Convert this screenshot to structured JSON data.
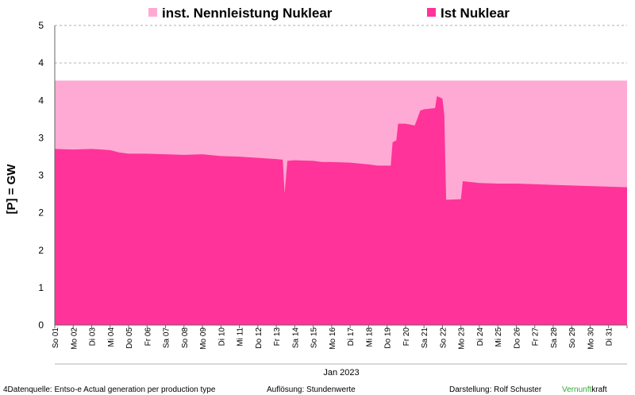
{
  "chart_data": {
    "type": "area",
    "xlabel": "Jan 2023",
    "ylabel": "[P] = GW",
    "ylim": [
      0,
      5
    ],
    "y_ticks": [
      "0",
      "1",
      "2",
      "2",
      "3",
      "3",
      "4",
      "4",
      "5"
    ],
    "grid": "horizontal dashed",
    "legend_position": "top",
    "categories": [
      "So 01",
      "Mo 02",
      "Di 03",
      "Mi 04",
      "Do 05",
      "Fr 06",
      "Sa 07",
      "So 08",
      "Mo 09",
      "Di 10",
      "Mi 11",
      "Do 12",
      "Fr 13",
      "Sa 14",
      "So 15",
      "Mo 16",
      "Di 17",
      "Mi 18",
      "Do 19",
      "Fr 20",
      "Sa 21",
      "So 22",
      "Mo 23",
      "Di 24",
      "Mi 25",
      "Do 26",
      "Fr 27",
      "Sa 28",
      "So 29",
      "Mo 30",
      "Di 31"
    ],
    "series": [
      {
        "name": "inst. Nennleistung Nuklear",
        "color": "#ffaad4",
        "points": [
          [
            0,
            4.08
          ],
          [
            31,
            4.08
          ]
        ]
      },
      {
        "name": "Ist Nuklear",
        "color": "#ff3399",
        "points": [
          [
            0,
            2.94
          ],
          [
            1,
            2.93
          ],
          [
            2,
            2.94
          ],
          [
            3,
            2.92
          ],
          [
            3.5,
            2.88
          ],
          [
            4,
            2.86
          ],
          [
            5,
            2.86
          ],
          [
            6,
            2.85
          ],
          [
            7,
            2.84
          ],
          [
            8,
            2.85
          ],
          [
            9,
            2.82
          ],
          [
            10,
            2.81
          ],
          [
            11,
            2.79
          ],
          [
            12,
            2.77
          ],
          [
            12.35,
            2.76
          ],
          [
            12.45,
            2.2
          ],
          [
            12.6,
            2.74
          ],
          [
            13,
            2.75
          ],
          [
            14,
            2.74
          ],
          [
            14.5,
            2.72
          ],
          [
            15,
            2.72
          ],
          [
            16,
            2.71
          ],
          [
            17,
            2.68
          ],
          [
            17.5,
            2.66
          ],
          [
            18.2,
            2.66
          ],
          [
            18.3,
            3.05
          ],
          [
            18.5,
            3.08
          ],
          [
            18.6,
            3.36
          ],
          [
            19,
            3.36
          ],
          [
            19.5,
            3.33
          ],
          [
            19.8,
            3.58
          ],
          [
            20,
            3.6
          ],
          [
            20.6,
            3.62
          ],
          [
            20.7,
            3.82
          ],
          [
            21,
            3.78
          ],
          [
            21.1,
            3.5
          ],
          [
            21.2,
            2.09
          ],
          [
            22,
            2.1
          ],
          [
            22.1,
            2.4
          ],
          [
            23,
            2.37
          ],
          [
            24,
            2.36
          ],
          [
            25,
            2.36
          ],
          [
            26,
            2.35
          ],
          [
            27,
            2.34
          ],
          [
            28,
            2.33
          ],
          [
            29,
            2.32
          ],
          [
            30,
            2.31
          ],
          [
            31,
            2.3
          ]
        ]
      }
    ]
  },
  "footer": {
    "source": "4Datenquelle: Entso-e  Actual generation per production type",
    "resolution": "Auflösung: Stundenwerte",
    "author": "Darstellung:  Rolf Schuster",
    "brand_green": "Vernunft",
    "brand_rest": "kraft",
    "brand_green_color": "#33aa33"
  }
}
